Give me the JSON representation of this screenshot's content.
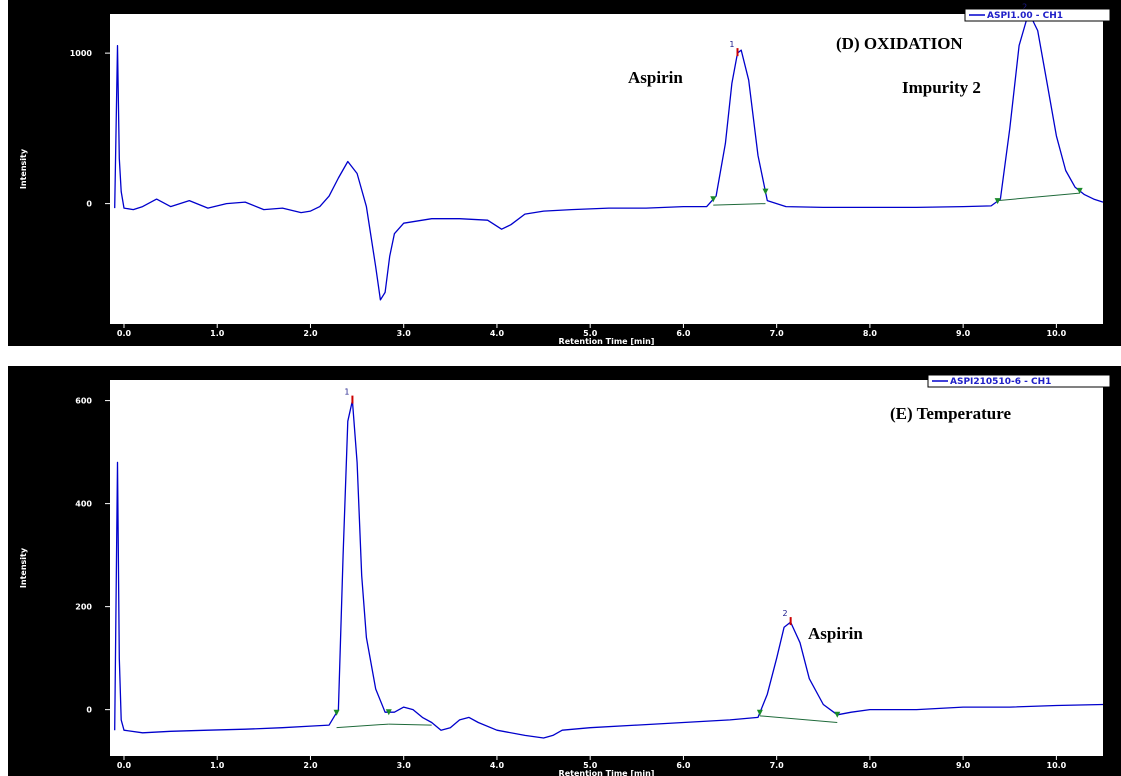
{
  "colors": {
    "frame": "#000000",
    "plot_bg": "#ffffff",
    "trace": "#0000cc",
    "baseline": "#1f6a3a",
    "marker": "#1a8a2a",
    "apex": "#cc0000"
  },
  "chart_data": [
    {
      "type": "line",
      "xlabel": "Retention Time [min]",
      "ylabel": "Intensity",
      "legend": "ASPI1.00 - CH1",
      "legend_position": "top-right",
      "xlim": [
        -0.15,
        10.5
      ],
      "ylim": [
        -800,
        1260
      ],
      "x_ticks": [
        0.0,
        1.0,
        2.0,
        3.0,
        4.0,
        5.0,
        6.0,
        7.0,
        8.0,
        9.0,
        10.0
      ],
      "x_tick_labels": [
        "0.0",
        "1.0",
        "2.0",
        "3.0",
        "4.0",
        "5.0",
        "6.0",
        "7.0",
        "8.0",
        "9.0",
        "10.0"
      ],
      "y_ticks": [
        0,
        1000
      ],
      "y_tick_labels": [
        "0",
        "1000"
      ],
      "grid": false,
      "series": [
        {
          "x": [
            -0.1,
            -0.07,
            -0.05,
            -0.03,
            0.0,
            0.1,
            0.2,
            0.35,
            0.5,
            0.7,
            0.9,
            1.1,
            1.3,
            1.5,
            1.7,
            1.9,
            2.0,
            2.1,
            2.2,
            2.3,
            2.4,
            2.5,
            2.6,
            2.7,
            2.75,
            2.8,
            2.85,
            2.9,
            3.0,
            3.1,
            3.3,
            3.6,
            3.9,
            4.05,
            4.15,
            4.3,
            4.5,
            4.8,
            5.2,
            5.6,
            6.0,
            6.25,
            6.35,
            6.45,
            6.52,
            6.58,
            6.62,
            6.7,
            6.8,
            6.9,
            7.1,
            7.5,
            8.0,
            8.5,
            9.0,
            9.3,
            9.4,
            9.5,
            9.6,
            9.68,
            9.72,
            9.8,
            9.9,
            10.0,
            10.1,
            10.2,
            10.3,
            10.4,
            10.5
          ],
          "y": [
            -30,
            1050,
            300,
            80,
            -30,
            -40,
            -20,
            30,
            -20,
            20,
            -30,
            0,
            10,
            -40,
            -30,
            -60,
            -50,
            -20,
            50,
            170,
            280,
            200,
            -20,
            -420,
            -640,
            -590,
            -350,
            -200,
            -130,
            -120,
            -100,
            -100,
            -110,
            -170,
            -140,
            -70,
            -50,
            -40,
            -30,
            -30,
            -20,
            -20,
            50,
            400,
            800,
            1000,
            1020,
            820,
            320,
            20,
            -20,
            -25,
            -25,
            -25,
            -20,
            -15,
            30,
            500,
            1050,
            1220,
            1250,
            1150,
            800,
            450,
            220,
            110,
            60,
            30,
            10
          ],
          "peak_labels": [
            "Aspirin",
            "Impurity 2"
          ]
        }
      ],
      "annotations": [
        "Aspirin",
        "(D) OXIDATION",
        "Impurity 2"
      ]
    },
    {
      "type": "line",
      "xlabel": "Retention Time [min]",
      "ylabel": "Intensity",
      "legend": "ASPI210510-6 - CH1",
      "legend_position": "top-right",
      "xlim": [
        -0.15,
        10.5
      ],
      "ylim": [
        -90,
        640
      ],
      "x_ticks": [
        0.0,
        1.0,
        2.0,
        3.0,
        4.0,
        5.0,
        6.0,
        7.0,
        8.0,
        9.0,
        10.0
      ],
      "x_tick_labels": [
        "0.0",
        "1.0",
        "2.0",
        "3.0",
        "4.0",
        "5.0",
        "6.0",
        "7.0",
        "8.0",
        "9.0",
        "10.0"
      ],
      "y_ticks": [
        0,
        200,
        400,
        600
      ],
      "y_tick_labels": [
        "0",
        "200",
        "400",
        "600"
      ],
      "grid": false,
      "series": [
        {
          "x": [
            -0.1,
            -0.07,
            -0.05,
            -0.03,
            0.0,
            0.2,
            0.5,
            0.9,
            1.3,
            1.7,
            2.0,
            2.2,
            2.3,
            2.35,
            2.4,
            2.45,
            2.5,
            2.55,
            2.6,
            2.7,
            2.8,
            2.9,
            3.0,
            3.1,
            3.2,
            3.3,
            3.4,
            3.5,
            3.6,
            3.7,
            3.8,
            4.0,
            4.3,
            4.5,
            4.6,
            4.7,
            5.0,
            5.5,
            6.0,
            6.5,
            6.8,
            6.9,
            7.0,
            7.08,
            7.15,
            7.25,
            7.35,
            7.5,
            7.65,
            7.8,
            8.0,
            8.5,
            9.0,
            9.5,
            10.0,
            10.5
          ],
          "y": [
            -40,
            480,
            100,
            -20,
            -40,
            -45,
            -42,
            -40,
            -38,
            -35,
            -32,
            -30,
            0,
            300,
            560,
            600,
            480,
            260,
            140,
            40,
            -5,
            -5,
            5,
            0,
            -15,
            -25,
            -40,
            -35,
            -20,
            -15,
            -25,
            -40,
            -50,
            -55,
            -50,
            -40,
            -35,
            -30,
            -25,
            -20,
            -15,
            30,
            100,
            160,
            170,
            130,
            60,
            10,
            -10,
            -5,
            0,
            0,
            5,
            5,
            8,
            10
          ],
          "peak_labels": [
            "Aspirin"
          ]
        }
      ],
      "annotations": [
        "(E) Temperature",
        "Aspirin"
      ]
    }
  ]
}
